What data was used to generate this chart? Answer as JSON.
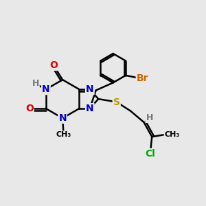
{
  "background_color": "#e8e8e8",
  "atom_colors": {
    "C": "#000000",
    "N": "#0000cc",
    "O": "#dd0000",
    "S": "#bb9900",
    "Br": "#cc6600",
    "Cl": "#00aa00",
    "H": "#777777"
  },
  "bond_color": "#000000",
  "bond_width": 1.8,
  "font_size": 9.5,
  "figsize": [
    3.0,
    3.0
  ],
  "dpi": 100
}
